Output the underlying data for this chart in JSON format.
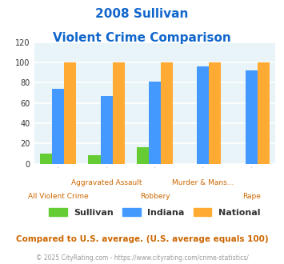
{
  "title_line1": "2008 Sullivan",
  "title_line2": "Violent Crime Comparison",
  "categories": [
    "All Violent Crime",
    "Aggravated Assault",
    "Robbery",
    "Murder & Mans...",
    "Rape"
  ],
  "sullivan": [
    10,
    8,
    16,
    0,
    0
  ],
  "indiana": [
    74,
    67,
    81,
    96,
    92
  ],
  "national": [
    100,
    100,
    100,
    100,
    100
  ],
  "sullivan_color": "#66cc33",
  "indiana_color": "#4499ff",
  "national_color": "#ffaa33",
  "ylabel_max": 120,
  "yticks": [
    0,
    20,
    40,
    60,
    80,
    100,
    120
  ],
  "bg_color": "#e8f4f8",
  "grid_color": "#ffffff",
  "title_color": "#1166cc",
  "xlabel_color": "#cc6600",
  "footer_note": "Compared to U.S. average. (U.S. average equals 100)",
  "copyright": "© 2025 CityRating.com - https://www.cityrating.com/crime-statistics/",
  "legend_labels": [
    "Sullivan",
    "Indiana",
    "National"
  ]
}
